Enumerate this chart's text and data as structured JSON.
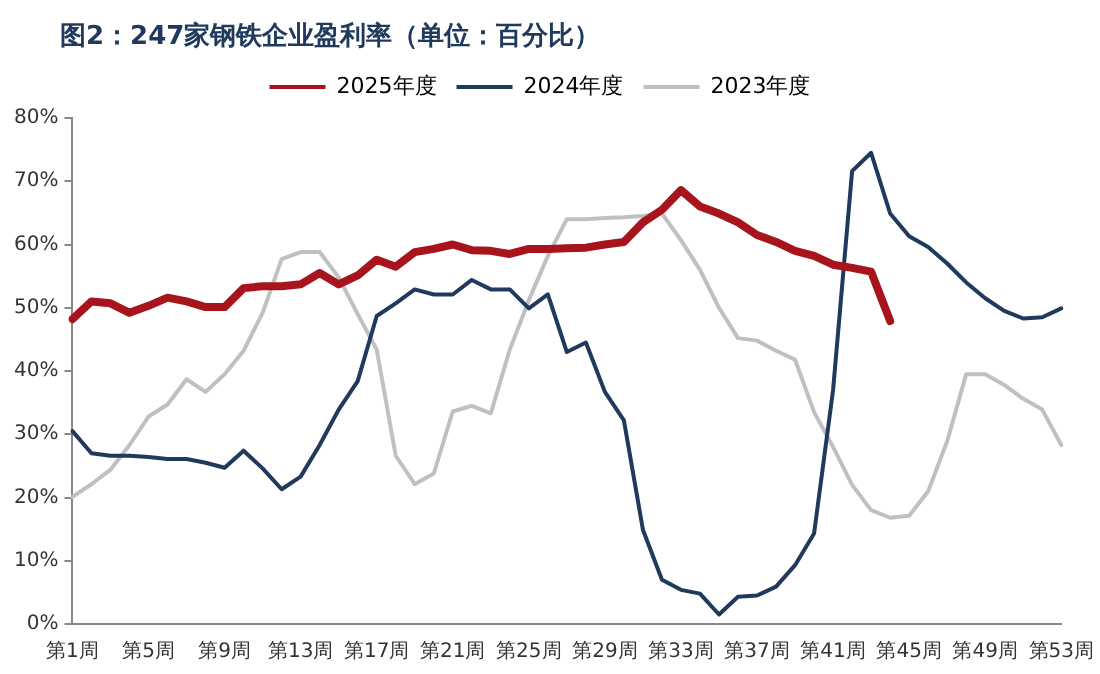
{
  "chart_data": {
    "type": "line",
    "title": "图2：247家钢铁企业盈利率（单位：百分比）",
    "categories": [
      "第1周",
      null,
      null,
      null,
      "第5周",
      null,
      null,
      null,
      "第9周",
      null,
      null,
      null,
      "第13周",
      null,
      null,
      null,
      "第17周",
      null,
      null,
      null,
      "第21周",
      null,
      null,
      null,
      "第25周",
      null,
      null,
      null,
      "第29周",
      null,
      null,
      null,
      "第33周",
      null,
      null,
      null,
      "第37周",
      null,
      null,
      null,
      "第41周",
      null,
      null,
      null,
      "第45周",
      null,
      null,
      null,
      "第49周",
      null,
      null,
      null,
      "第53周"
    ],
    "series": [
      {
        "name": "2025年度",
        "color": "#a8141c",
        "values": [
          48.2,
          51,
          50.7,
          49.2,
          50.3,
          51.6,
          51,
          50.1,
          50.1,
          53.1,
          53.4,
          53.4,
          53.7,
          55.5,
          53.7,
          55.1,
          57.6,
          56.5,
          58.8,
          59.3,
          60,
          59.1,
          59,
          58.5,
          59.3,
          59.3,
          59.4,
          59.5,
          60,
          60.4,
          63.5,
          65.5,
          68.6,
          66,
          64.9,
          63.5,
          61.5,
          60.4,
          59,
          58.2,
          56.8,
          56.3,
          55.7,
          47.9,
          null,
          null,
          null,
          null,
          null,
          null,
          null,
          null,
          null
        ]
      },
      {
        "name": "2024年度",
        "color": "#1f3a5c",
        "values": [
          30.5,
          27,
          26.6,
          26.6,
          26.4,
          26.1,
          26.1,
          25.5,
          24.7,
          27.4,
          24.6,
          21.3,
          23.3,
          28.3,
          33.9,
          38.4,
          48.7,
          50.7,
          52.9,
          52.1,
          52.1,
          54.4,
          52.9,
          52.9,
          49.9,
          52.1,
          43,
          44.5,
          36.7,
          32.2,
          14.9,
          7,
          5.4,
          4.8,
          1.5,
          4.3,
          4.5,
          5.9,
          9.3,
          14.3,
          37,
          71.6,
          74.5,
          64.9,
          61.3,
          59.6,
          57,
          54,
          51.5,
          49.5,
          48.3,
          48.5,
          49.9
        ]
      },
      {
        "name": "2023年度",
        "color": "#c0c0c0",
        "values": [
          20.1,
          22.1,
          24.4,
          28.3,
          32.8,
          34.7,
          38.7,
          36.7,
          39.5,
          43.2,
          49.2,
          57.7,
          58.8,
          58.8,
          54.8,
          49,
          43.4,
          26.6,
          22.1,
          23.8,
          33.6,
          34.5,
          33.3,
          43.4,
          51.2,
          58.2,
          64,
          64,
          64.2,
          64.3,
          64.5,
          64.9,
          60.7,
          56,
          50,
          45.2,
          44.8,
          43.2,
          41.8,
          33.5,
          28,
          22,
          18,
          16.8,
          17.1,
          21,
          28.9,
          39.5,
          39.5,
          37.8,
          35.6,
          33.9,
          28.3
        ]
      }
    ],
    "ylim": [
      0,
      80
    ],
    "yticks": [
      {
        "value": 0,
        "label": "0%"
      },
      {
        "value": 10,
        "label": "10%"
      },
      {
        "value": 20,
        "label": "20%"
      },
      {
        "value": 30,
        "label": "30%"
      },
      {
        "value": 40,
        "label": "40%"
      },
      {
        "value": 50,
        "label": "50%"
      },
      {
        "value": 60,
        "label": "60%"
      },
      {
        "value": 70,
        "label": "70%"
      },
      {
        "value": 80,
        "label": "80%"
      }
    ],
    "grid": false,
    "legend": "top",
    "marker": "none",
    "line_style": "solid"
  }
}
